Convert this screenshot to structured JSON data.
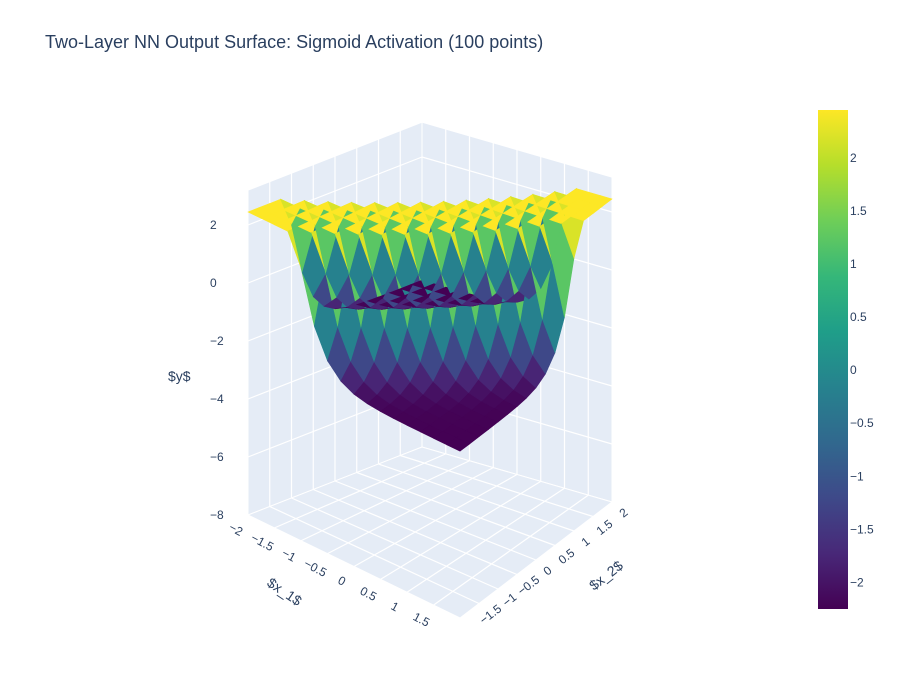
{
  "chart_data": {
    "type": "surface",
    "title": "Two-Layer NN Output Surface: Sigmoid Activation (100 points)",
    "colorscale": "Viridis",
    "colorscale_stops": [
      "#440154",
      "#482878",
      "#3e4989",
      "#31688e",
      "#26828e",
      "#1f9e89",
      "#35b779",
      "#6ece58",
      "#b5de2b",
      "#fde725"
    ],
    "scene": {
      "x_axis": {
        "title": "$x_1$",
        "range": [
          -2,
          2
        ],
        "ticks": [
          "−2",
          "−1.5",
          "−1",
          "−0.5",
          "0",
          "0.5",
          "1",
          "1.5"
        ]
      },
      "y_axis": {
        "title": "$x_2$",
        "range": [
          -2,
          2
        ],
        "ticks": [
          "−1.5",
          "−1",
          "−0.5",
          "0",
          "0.5",
          "1",
          "1.5",
          "2"
        ]
      },
      "z_axis": {
        "title": "$y$",
        "range": [
          -8,
          3
        ],
        "ticks": [
          "−8",
          "−6",
          "−4",
          "−2",
          "0",
          "2"
        ]
      },
      "background": "#e5ecf6",
      "grid": true
    },
    "x": [
      -2,
      -1.5,
      -1,
      -0.5,
      0,
      0.5,
      1,
      1.5,
      2
    ],
    "y": [
      -2,
      -1.5,
      -1,
      -0.5,
      0,
      0.5,
      1,
      1.5,
      2
    ],
    "z_min": -2.25,
    "z_max": 2.45,
    "z_approx_formula": "ridge along x_1 ≈ x_2 rising from about -2.25 to about 2.45",
    "colorbar": {
      "range": [
        -2.25,
        2.45
      ],
      "ticks": [
        {
          "value": 2,
          "label": "2"
        },
        {
          "value": 1.5,
          "label": "1.5"
        },
        {
          "value": 1,
          "label": "1"
        },
        {
          "value": 0.5,
          "label": "0.5"
        },
        {
          "value": 0,
          "label": "0"
        },
        {
          "value": -0.5,
          "label": "−0.5"
        },
        {
          "value": -1,
          "label": "−1"
        },
        {
          "value": -1.5,
          "label": "−1.5"
        },
        {
          "value": -2,
          "label": "−2"
        }
      ]
    }
  }
}
